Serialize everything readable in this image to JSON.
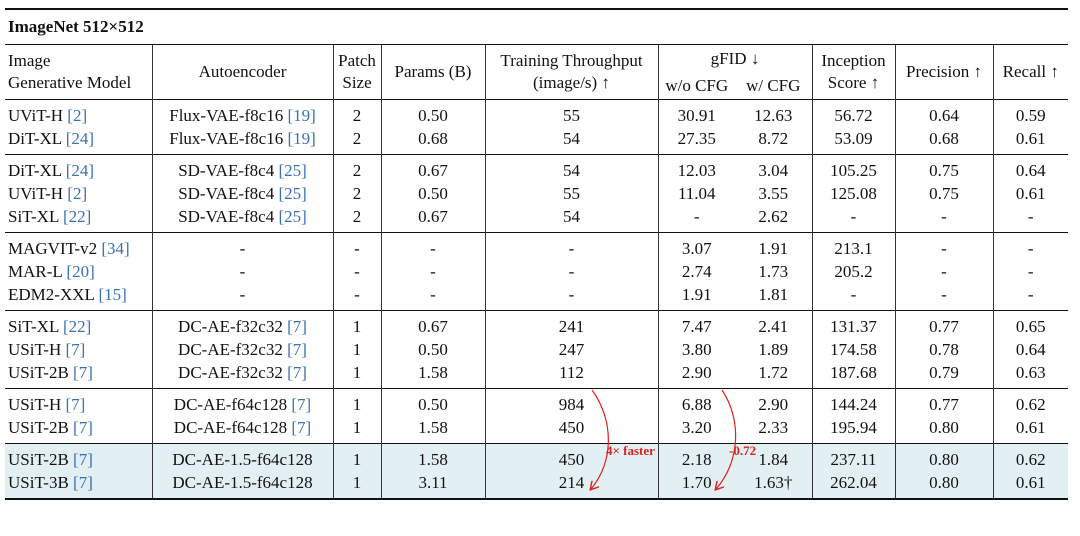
{
  "title": "ImageNet 512×512",
  "header": {
    "model": "Image\nGenerative Model",
    "autoencoder": "Autoencoder",
    "patch": "Patch\nSize",
    "params": "Params (B)",
    "throughput": "Training Throughput\n(image/s) ↑",
    "gfid": "gFID ↓",
    "gfid_sub": [
      "w/o CFG",
      "w/ CFG"
    ],
    "is": "Inception\nScore ↑",
    "precision": "Precision ↑",
    "recall": "Recall ↑"
  },
  "groups": [
    {
      "rows": [
        {
          "model": "UViT-H",
          "model_ref": "[2]",
          "autoencoder": "Flux-VAE-f8c16",
          "autoencoder_ref": "[19]",
          "cells": [
            "2",
            "0.50",
            "55",
            "30.91",
            "12.63",
            "56.72",
            "0.64",
            "0.59"
          ]
        },
        {
          "model": "DiT-XL",
          "model_ref": "[24]",
          "autoencoder": "Flux-VAE-f8c16",
          "autoencoder_ref": "[19]",
          "cells": [
            "2",
            "0.68",
            "54",
            "27.35",
            "8.72",
            "53.09",
            "0.68",
            "0.61"
          ]
        }
      ]
    },
    {
      "rows": [
        {
          "model": "DiT-XL",
          "model_ref": "[24]",
          "autoencoder": "SD-VAE-f8c4",
          "autoencoder_ref": "[25]",
          "cells": [
            "2",
            "0.67",
            "54",
            "12.03",
            "3.04",
            "105.25",
            "0.75",
            "0.64"
          ]
        },
        {
          "model": "UViT-H",
          "model_ref": "[2]",
          "autoencoder": "SD-VAE-f8c4",
          "autoencoder_ref": "[25]",
          "cells": [
            "2",
            "0.50",
            "55",
            "11.04",
            "3.55",
            "125.08",
            "0.75",
            "0.61"
          ]
        },
        {
          "model": "SiT-XL",
          "model_ref": "[22]",
          "autoencoder": "SD-VAE-f8c4",
          "autoencoder_ref": "[25]",
          "cells": [
            "2",
            "0.67",
            "54",
            "-",
            "2.62",
            "-",
            "-",
            "-"
          ]
        }
      ]
    },
    {
      "rows": [
        {
          "model": "MAGVIT-v2",
          "model_ref": "[34]",
          "autoencoder": "-",
          "cells": [
            "-",
            "-",
            "-",
            "3.07",
            "1.91",
            "213.1",
            "-",
            "-"
          ]
        },
        {
          "model": "MAR-L",
          "model_ref": "[20]",
          "autoencoder": "-",
          "cells": [
            "-",
            "-",
            "-",
            "2.74",
            "1.73",
            "205.2",
            "-",
            "-"
          ]
        },
        {
          "model": "EDM2-XXL",
          "model_ref": "[15]",
          "autoencoder": "-",
          "cells": [
            "-",
            "-",
            "-",
            "1.91",
            "1.81",
            "-",
            "-",
            "-"
          ]
        }
      ]
    },
    {
      "rows": [
        {
          "model": "SiT-XL",
          "model_ref": "[22]",
          "autoencoder": "DC-AE-f32c32",
          "autoencoder_ref": "[7]",
          "cells": [
            "1",
            "0.67",
            "241",
            "7.47",
            "2.41",
            "131.37",
            "0.77",
            "0.65"
          ]
        },
        {
          "model": "USiT-H",
          "model_ref": "[7]",
          "autoencoder": "DC-AE-f32c32",
          "autoencoder_ref": "[7]",
          "cells": [
            "1",
            "0.50",
            "247",
            "3.80",
            "1.89",
            "174.58",
            "0.78",
            "0.64"
          ]
        },
        {
          "model": "USiT-2B",
          "model_ref": "[7]",
          "autoencoder": "DC-AE-f32c32",
          "autoencoder_ref": "[7]",
          "cells": [
            "1",
            "1.58",
            "112",
            "2.90",
            "1.72",
            "187.68",
            "0.79",
            "0.63"
          ]
        }
      ]
    },
    {
      "rows": [
        {
          "model": "USiT-H",
          "model_ref": "[7]",
          "autoencoder": "DC-AE-f64c128",
          "autoencoder_ref": "[7]",
          "cells": [
            "1",
            "0.50",
            "984",
            "6.88",
            "2.90",
            "144.24",
            "0.77",
            "0.62"
          ]
        },
        {
          "model": "USiT-2B",
          "model_ref": "[7]",
          "autoencoder": "DC-AE-f64c128",
          "autoencoder_ref": "[7]",
          "cells": [
            "1",
            "1.58",
            "450",
            "3.20",
            "2.33",
            "195.94",
            "0.80",
            "0.61"
          ]
        }
      ]
    },
    {
      "background": "#e3f0f3",
      "rows": [
        {
          "model": "USiT-2B",
          "model_ref": "[7]",
          "autoencoder": "DC-AE-1.5-f64c128",
          "cells": [
            "1",
            "1.58",
            "450",
            "2.18",
            "1.84",
            "237.11",
            "0.80",
            "0.62"
          ]
        },
        {
          "model": "USiT-3B",
          "model_ref": "[7]",
          "autoencoder": "DC-AE-1.5-f64c128",
          "cells": [
            "1",
            "3.11",
            "214",
            "1.70",
            "1.63†",
            "262.04",
            "0.80",
            "0.61"
          ]
        }
      ]
    }
  ],
  "annotations": [
    "4× faster",
    "-0.72"
  ]
}
